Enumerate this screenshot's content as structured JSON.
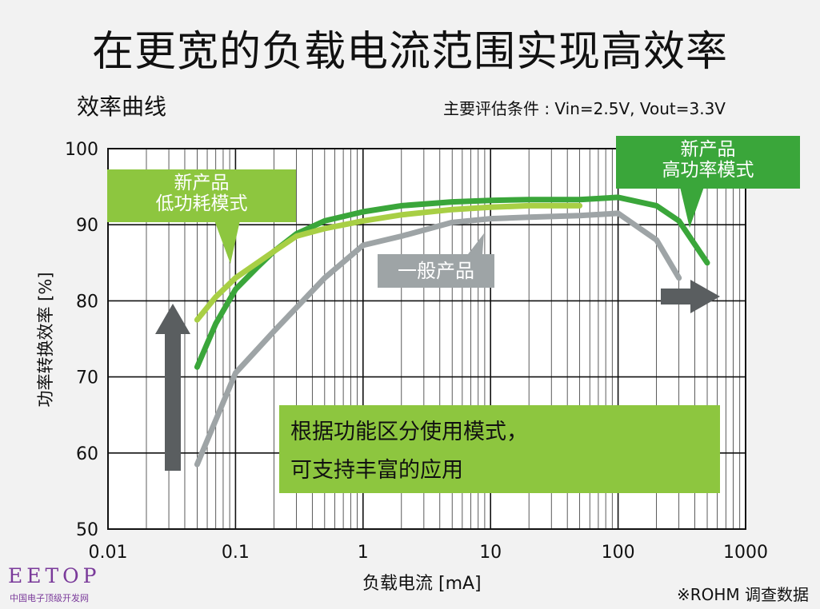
{
  "title": "在更宽的负载电流范围实现高效率",
  "subtitle": "效率曲线",
  "conditions": "主要评估条件 : Vin=2.5V, Vout=3.3V",
  "source": "※ROHM 调查数据",
  "logo": {
    "main": "EETOP",
    "sub": "中国电子顶级开发网"
  },
  "callouts": {
    "low_power": [
      "新产品",
      "低功耗模式"
    ],
    "high_power": [
      "新产品",
      "高功率模式"
    ],
    "general": "一般产品"
  },
  "note": [
    "根据功能区分使用模式，",
    "可支持丰富的应用"
  ],
  "colors": {
    "background": "#f2f2f2",
    "high_power": "#3aa63a",
    "low_power": "#a8cf45",
    "general": "#9ea4a6",
    "arrow": "#5a5e60",
    "note_bg": "#8dc63f"
  },
  "chart_data": {
    "type": "line",
    "x_scale": "log",
    "xlim": [
      0.01,
      1000
    ],
    "ylim": [
      50,
      100
    ],
    "xlabel": "负载电流 [mA]",
    "ylabel": "功率转换效率 [%]",
    "x_ticks": [
      0.01,
      0.1,
      1,
      10,
      100,
      1000
    ],
    "x_tick_labels": [
      "0.01",
      "0.1",
      "1",
      "10",
      "100",
      "1000"
    ],
    "y_ticks": [
      50,
      60,
      70,
      80,
      90,
      100
    ],
    "y_tick_labels": [
      "50",
      "60",
      "70",
      "80",
      "90",
      "100"
    ],
    "grid": true,
    "series": [
      {
        "key": "high_power",
        "name": "新产品 高功率模式",
        "color": "#3aa63a",
        "x": [
          0.05,
          0.07,
          0.1,
          0.15,
          0.2,
          0.3,
          0.5,
          1,
          2,
          5,
          10,
          20,
          50,
          100,
          200,
          300,
          500
        ],
        "y": [
          71.3,
          77,
          81.5,
          84.5,
          86.5,
          88.8,
          90.5,
          91.7,
          92.5,
          93.0,
          93.2,
          93.3,
          93.3,
          93.6,
          92.5,
          90.5,
          85
        ]
      },
      {
        "key": "low_power",
        "name": "新产品 低功耗模式",
        "color": "#a8cf45",
        "x": [
          0.05,
          0.07,
          0.1,
          0.2,
          0.3,
          0.5,
          1,
          2,
          5,
          10,
          20,
          50
        ],
        "y": [
          77.5,
          80.5,
          83,
          86.5,
          88.5,
          89.5,
          90.5,
          91.3,
          92.0,
          92.3,
          92.5,
          92.5
        ]
      },
      {
        "key": "general",
        "name": "一般产品",
        "color": "#9ea4a6",
        "x": [
          0.05,
          0.1,
          0.2,
          0.5,
          1,
          2,
          5,
          10,
          20,
          50,
          100,
          200,
          300
        ],
        "y": [
          58.5,
          70.5,
          76,
          83,
          87.3,
          88.5,
          90.3,
          90.8,
          91.0,
          91.2,
          91.5,
          88,
          83
        ]
      }
    ]
  }
}
